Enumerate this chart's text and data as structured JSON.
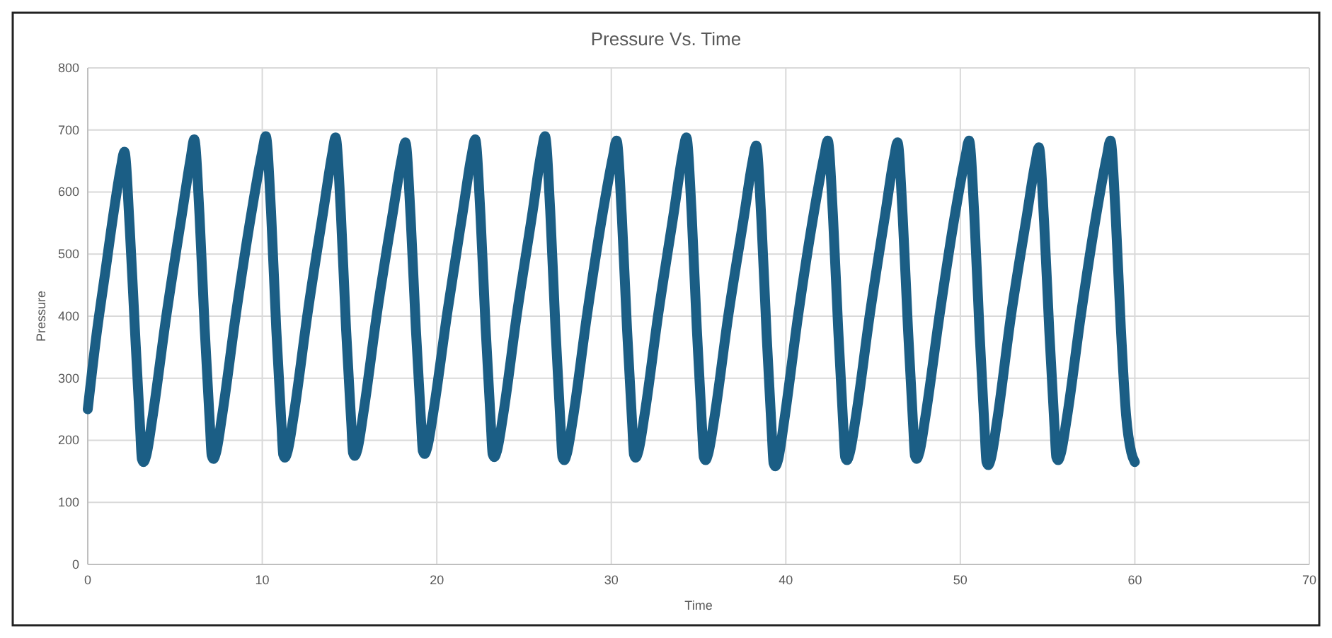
{
  "chart_data": {
    "type": "line",
    "title": "Pressure Vs. Time",
    "xlabel": "Time",
    "ylabel": "Pressure",
    "xlim": [
      0,
      70
    ],
    "xticks": [
      0,
      10,
      20,
      30,
      40,
      50,
      60,
      70
    ],
    "ylim": [
      0,
      800
    ],
    "yticks": [
      0,
      100,
      200,
      300,
      400,
      500,
      600,
      700,
      800
    ],
    "grid": true,
    "marker": "none",
    "line_style": "solid",
    "series": [
      {
        "color": "#1b5e85",
        "x": [
          0,
          0.5,
          1.0,
          1.5,
          1.9,
          2.1,
          2.4,
          2.7,
          3.0,
          3.1,
          3.2,
          3.35,
          3.7,
          4.5,
          5.4,
          5.9,
          6.1,
          6.4,
          6.7,
          7.0,
          7.1,
          7.2,
          7.35,
          7.7,
          8.5,
          9.4,
          10.0,
          10.2,
          10.5,
          10.8,
          11.1,
          11.2,
          11.3,
          11.45,
          11.8,
          12.6,
          13.5,
          14.0,
          14.2,
          14.5,
          14.8,
          15.1,
          15.2,
          15.3,
          15.45,
          15.8,
          16.6,
          17.5,
          18.0,
          18.2,
          18.5,
          18.8,
          19.1,
          19.2,
          19.3,
          19.45,
          19.8,
          20.6,
          21.5,
          22.0,
          22.2,
          22.5,
          22.8,
          23.1,
          23.2,
          23.3,
          23.45,
          23.8,
          24.6,
          25.5,
          26.0,
          26.2,
          26.5,
          26.8,
          27.1,
          27.2,
          27.3,
          27.45,
          27.8,
          28.6,
          29.5,
          30.1,
          30.3,
          30.6,
          30.9,
          31.2,
          31.3,
          31.4,
          31.55,
          31.9,
          32.7,
          33.6,
          34.1,
          34.3,
          34.6,
          34.9,
          35.2,
          35.3,
          35.4,
          35.55,
          35.9,
          36.7,
          37.6,
          38.1,
          38.3,
          38.6,
          38.9,
          39.2,
          39.3,
          39.4,
          39.55,
          39.9,
          40.7,
          41.6,
          42.2,
          42.4,
          42.7,
          43.0,
          43.3,
          43.4,
          43.5,
          43.65,
          44.0,
          44.8,
          45.7,
          46.2,
          46.4,
          46.7,
          47.0,
          47.3,
          47.4,
          47.5,
          47.65,
          48.0,
          48.8,
          49.7,
          50.3,
          50.5,
          50.8,
          51.1,
          51.4,
          51.5,
          51.6,
          51.75,
          52.1,
          52.9,
          53.8,
          54.3,
          54.5,
          54.8,
          55.1,
          55.4,
          55.5,
          55.6,
          55.75,
          56.1,
          56.9,
          57.8,
          58.4,
          58.6,
          58.9,
          59.2,
          59.5,
          59.8,
          60.0
        ],
        "values": [
          250,
          370,
          470,
          570,
          640,
          665,
          545,
          380,
          220,
          170,
          165,
          175,
          235,
          400,
          565,
          655,
          685,
          565,
          380,
          225,
          176,
          170,
          180,
          240,
          405,
          570,
          665,
          690,
          570,
          380,
          225,
          177,
          172,
          182,
          240,
          405,
          570,
          660,
          688,
          568,
          380,
          228,
          180,
          175,
          185,
          245,
          410,
          570,
          655,
          680,
          560,
          380,
          230,
          183,
          178,
          188,
          245,
          405,
          570,
          660,
          685,
          565,
          380,
          225,
          178,
          173,
          183,
          240,
          405,
          570,
          665,
          690,
          570,
          380,
          220,
          173,
          168,
          178,
          235,
          400,
          565,
          658,
          683,
          563,
          380,
          225,
          177,
          172,
          182,
          240,
          405,
          570,
          663,
          688,
          568,
          380,
          220,
          173,
          168,
          178,
          235,
          400,
          560,
          650,
          675,
          555,
          370,
          210,
          163,
          158,
          168,
          230,
          400,
          565,
          658,
          683,
          563,
          380,
          220,
          173,
          168,
          178,
          235,
          400,
          565,
          655,
          680,
          560,
          380,
          222,
          175,
          170,
          180,
          238,
          400,
          565,
          658,
          683,
          563,
          375,
          212,
          165,
          160,
          170,
          230,
          400,
          560,
          647,
          672,
          552,
          375,
          220,
          173,
          168,
          178,
          235,
          400,
          565,
          658,
          683,
          563,
          380,
          240,
          180,
          165
        ]
      }
    ]
  }
}
